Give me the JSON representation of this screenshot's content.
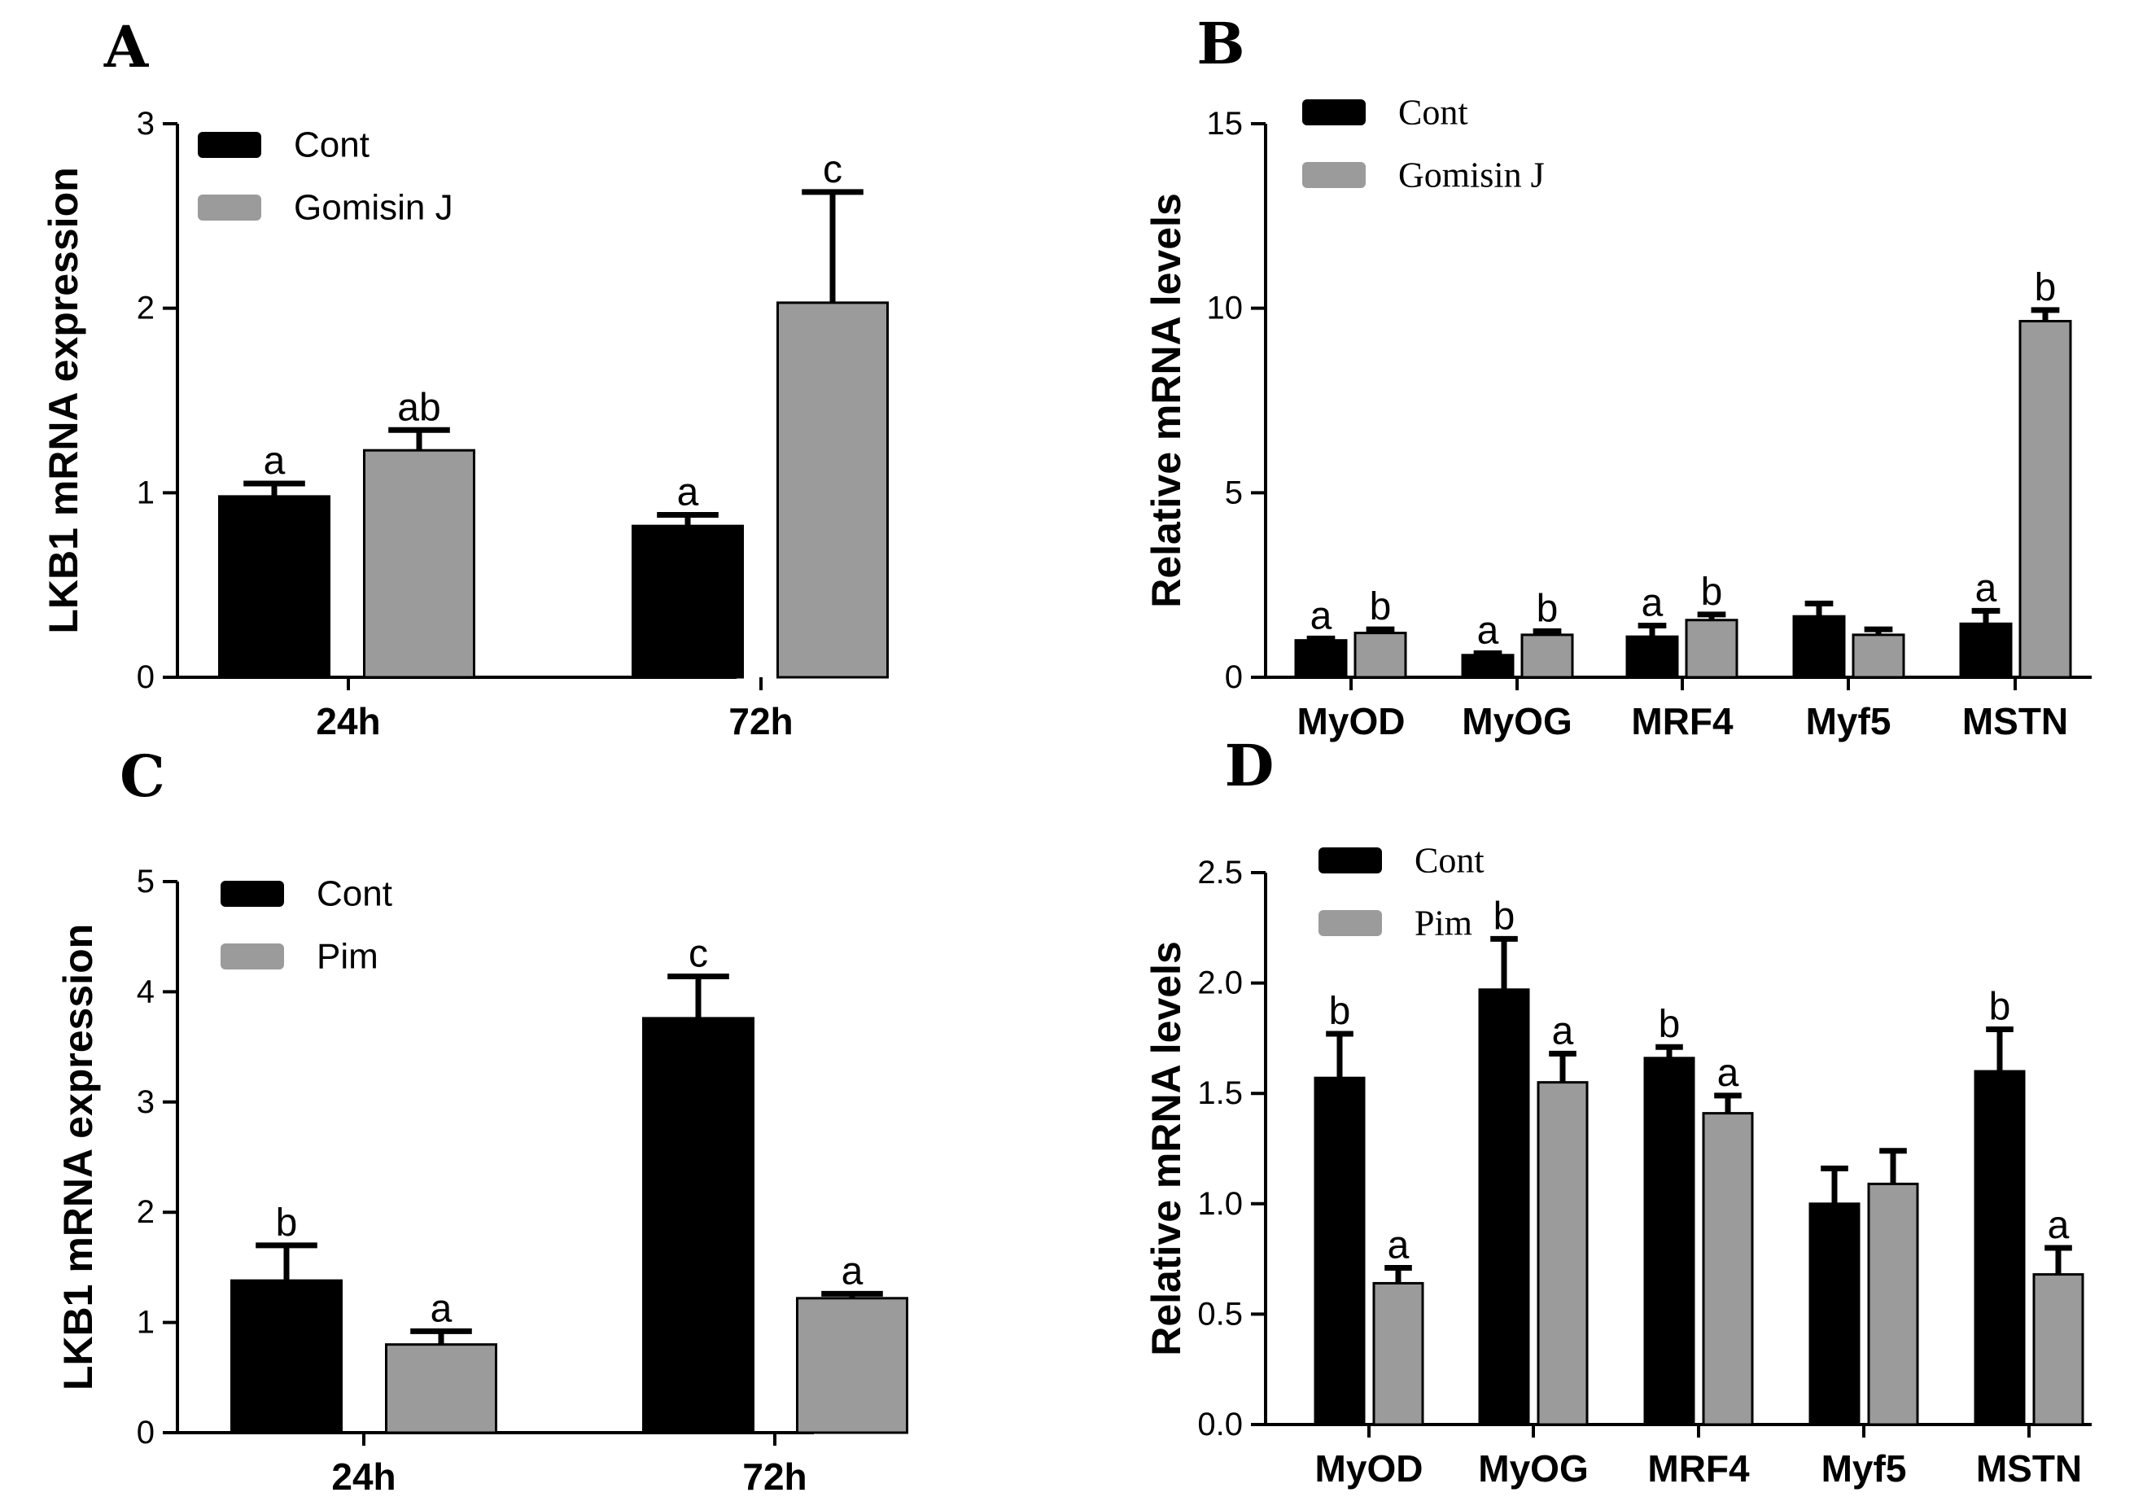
{
  "colors": {
    "cont": "#000000",
    "treatment": "#9b9b9b",
    "axis": "#000000"
  },
  "chart_data": [
    {
      "type": "bar",
      "panel": "A",
      "ylabel": "LKB1 mRNA expression",
      "ylim": [
        0,
        3
      ],
      "yticks": [
        "0",
        "1",
        "2",
        "3"
      ],
      "categories": [
        "24h",
        "72h"
      ],
      "series": [
        {
          "name": "Cont",
          "values": [
            0.98,
            0.82
          ],
          "errors": [
            0.07,
            0.06
          ],
          "labels": [
            "a",
            "a"
          ]
        },
        {
          "name": "Gomisin J",
          "values": [
            1.23,
            2.03
          ],
          "errors": [
            0.11,
            0.6
          ],
          "labels": [
            "ab",
            "c"
          ]
        }
      ]
    },
    {
      "type": "bar",
      "panel": "B",
      "ylabel": "Relative mRNA levels",
      "ylim": [
        0,
        15
      ],
      "yticks": [
        "0",
        "5",
        "10",
        "15"
      ],
      "categories": [
        "MyOD",
        "MyOG",
        "MRF4",
        "Myf5",
        "MSTN"
      ],
      "series": [
        {
          "name": "Cont",
          "values": [
            1.0,
            0.6,
            1.1,
            1.65,
            1.45
          ],
          "errors": [
            0.05,
            0.05,
            0.3,
            0.35,
            0.35
          ],
          "labels": [
            "a",
            "a",
            "a",
            "",
            "a"
          ]
        },
        {
          "name": "Gomisin J",
          "values": [
            1.2,
            1.15,
            1.55,
            1.15,
            9.65
          ],
          "errors": [
            0.1,
            0.1,
            0.15,
            0.15,
            0.3
          ],
          "labels": [
            "b",
            "b",
            "b",
            "",
            "b"
          ]
        }
      ]
    },
    {
      "type": "bar",
      "panel": "C",
      "ylabel": "LKB1 mRNA expression",
      "ylim": [
        0,
        5
      ],
      "yticks": [
        "0",
        "1",
        "2",
        "3",
        "4",
        "5"
      ],
      "categories": [
        "24h",
        "72h"
      ],
      "series": [
        {
          "name": "Cont",
          "values": [
            1.38,
            3.76
          ],
          "errors": [
            0.32,
            0.38
          ],
          "labels": [
            "b",
            "c"
          ]
        },
        {
          "name": "Pim",
          "values": [
            0.8,
            1.22
          ],
          "errors": [
            0.12,
            0.04
          ],
          "labels": [
            "a",
            "a"
          ]
        }
      ]
    },
    {
      "type": "bar",
      "panel": "D",
      "ylabel": "Relative mRNA levels",
      "ylim": [
        0,
        2.5
      ],
      "yticks": [
        "0.0",
        "0.5",
        "1.0",
        "1.5",
        "2.0",
        "2.5"
      ],
      "categories": [
        "MyOD",
        "MyOG",
        "MRF4",
        "Myf5",
        "MSTN"
      ],
      "series": [
        {
          "name": "Cont",
          "values": [
            1.57,
            1.97,
            1.66,
            1.0,
            1.6
          ],
          "errors": [
            0.2,
            0.23,
            0.05,
            0.16,
            0.19
          ],
          "labels": [
            "b",
            "b",
            "b",
            "",
            "b"
          ]
        },
        {
          "name": "Pim",
          "values": [
            0.64,
            1.55,
            1.41,
            1.09,
            0.68
          ],
          "errors": [
            0.07,
            0.13,
            0.08,
            0.15,
            0.12
          ],
          "labels": [
            "a",
            "a",
            "a",
            "",
            "a"
          ]
        }
      ]
    }
  ]
}
